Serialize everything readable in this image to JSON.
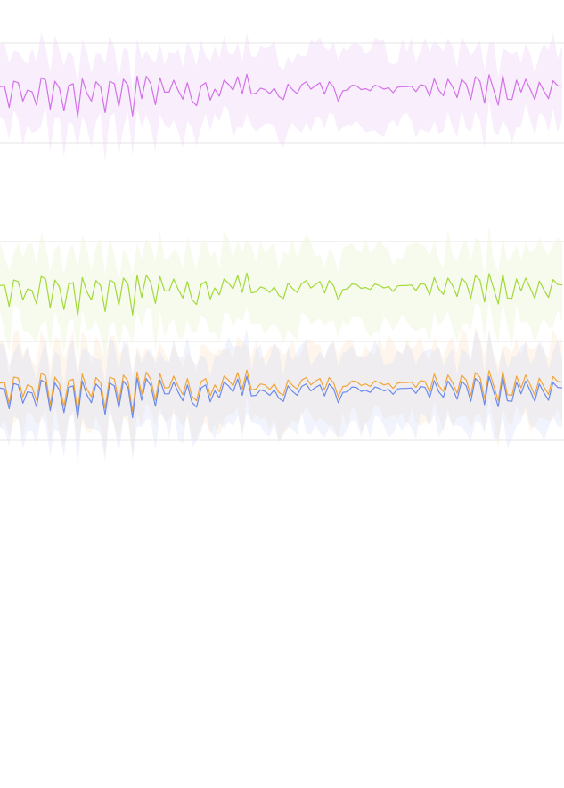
{
  "chart_data": [
    {
      "type": "line",
      "panel": "top",
      "x_points": 124,
      "ylim": [
        -1,
        1
      ],
      "grid": true,
      "band_color": "#eccff7",
      "series": [
        {
          "color": "#d371e8",
          "values": [
            0.12,
            0.13,
            -0.3,
            0.23,
            0.2,
            -0.17,
            0.05,
            0.02,
            -0.25,
            0.3,
            0.25,
            -0.33,
            0.23,
            0.09,
            -0.36,
            0.14,
            0.18,
            -0.49,
            0.28,
            -0.01,
            -0.17,
            0.22,
            0.12,
            -0.4,
            0.23,
            0.18,
            -0.28,
            0.27,
            0.15,
            -0.47,
            0.33,
            -0.12,
            0.33,
            0.18,
            -0.24,
            0.3,
            0.01,
            0.01,
            0.25,
            0.04,
            -0.13,
            0.2,
            -0.16,
            -0.26,
            0.14,
            0.2,
            -0.15,
            0.07,
            -0.07,
            0.25,
            0.17,
            0.05,
            0.32,
            -0.02,
            0.37,
            -0.03,
            -0.01,
            0.09,
            0.06,
            -0.02,
            0.09,
            -0.08,
            -0.14,
            0.17,
            0.06,
            -0.02,
            0.16,
            0.22,
            0.07,
            0.14,
            0.2,
            -0.03,
            0.22,
            0.11,
            -0.17,
            0.04,
            0.05,
            0.15,
            0.14,
            0.06,
            0.08,
            0.04,
            0.15,
            0.12,
            0.07,
            0.1,
            0.0,
            0.11,
            0.12,
            0.12,
            0.13,
            0.02,
            0.16,
            0.14,
            -0.07,
            0.28,
            0.05,
            -0.06,
            0.27,
            0.12,
            -0.1,
            0.27,
            0.17,
            -0.14,
            0.32,
            0.23,
            -0.21,
            0.36,
            0.06,
            -0.25,
            0.35,
            -0.13,
            -0.14,
            0.25,
            0.01,
            0.27,
            0.07,
            -0.14,
            0.21,
            0.03,
            -0.12,
            0.24,
            0.14,
            0.13
          ]
        }
      ]
    },
    {
      "type": "line",
      "panel": "middle",
      "x_points": 124,
      "ylim": [
        -1,
        1
      ],
      "grid": true,
      "band_color": "#e8f4cf",
      "series": [
        {
          "color": "#a2d93a",
          "values": [
            0.12,
            0.13,
            -0.3,
            0.23,
            0.2,
            -0.17,
            0.05,
            0.02,
            -0.25,
            0.3,
            0.25,
            -0.33,
            0.23,
            0.09,
            -0.36,
            0.14,
            0.18,
            -0.49,
            0.28,
            -0.01,
            -0.17,
            0.22,
            0.12,
            -0.4,
            0.23,
            0.18,
            -0.28,
            0.27,
            0.15,
            -0.47,
            0.33,
            -0.12,
            0.33,
            0.18,
            -0.24,
            0.3,
            0.01,
            0.01,
            0.25,
            0.04,
            -0.13,
            0.2,
            -0.16,
            -0.26,
            0.14,
            0.2,
            -0.15,
            0.07,
            -0.07,
            0.25,
            0.17,
            0.05,
            0.32,
            -0.02,
            0.37,
            -0.03,
            -0.01,
            0.09,
            0.06,
            -0.02,
            0.09,
            -0.08,
            -0.14,
            0.17,
            0.06,
            -0.02,
            0.16,
            0.22,
            0.07,
            0.14,
            0.2,
            -0.03,
            0.22,
            0.11,
            -0.17,
            0.04,
            0.05,
            0.15,
            0.14,
            0.06,
            0.08,
            0.04,
            0.15,
            0.12,
            0.07,
            0.1,
            0.0,
            0.11,
            0.12,
            0.12,
            0.13,
            0.02,
            0.16,
            0.14,
            -0.07,
            0.28,
            0.05,
            -0.06,
            0.27,
            0.12,
            -0.1,
            0.27,
            0.17,
            -0.14,
            0.32,
            0.23,
            -0.21,
            0.36,
            0.06,
            -0.25,
            0.35,
            -0.13,
            -0.14,
            0.25,
            0.01,
            0.27,
            0.07,
            -0.14,
            0.21,
            0.03,
            -0.12,
            0.24,
            0.14,
            0.13
          ]
        }
      ]
    },
    {
      "type": "line",
      "panel": "bottom",
      "x_points": 124,
      "ylim": [
        -1,
        1
      ],
      "grid": true,
      "band_colors": [
        "#fbe6c8",
        "#d8def9"
      ],
      "series": [
        {
          "color": "#f0a63a",
          "values": [
            0.16,
            0.17,
            -0.26,
            0.28,
            0.26,
            -0.12,
            0.12,
            0.08,
            -0.19,
            0.36,
            0.3,
            -0.28,
            0.28,
            0.14,
            -0.31,
            0.2,
            0.24,
            -0.42,
            0.34,
            0.04,
            -0.12,
            0.27,
            0.17,
            -0.35,
            0.28,
            0.24,
            -0.22,
            0.32,
            0.2,
            -0.42,
            0.38,
            -0.07,
            0.38,
            0.23,
            -0.19,
            0.35,
            0.06,
            0.07,
            0.3,
            0.09,
            -0.08,
            0.25,
            -0.11,
            -0.2,
            0.19,
            0.25,
            -0.1,
            0.12,
            -0.02,
            0.3,
            0.22,
            0.1,
            0.37,
            0.03,
            0.42,
            0.02,
            0.04,
            0.14,
            0.12,
            0.03,
            0.14,
            -0.03,
            -0.09,
            0.22,
            0.11,
            0.04,
            0.22,
            0.27,
            0.12,
            0.2,
            0.25,
            0.02,
            0.27,
            0.16,
            -0.12,
            0.09,
            0.1,
            0.2,
            0.19,
            0.11,
            0.14,
            0.09,
            0.2,
            0.17,
            0.12,
            0.15,
            0.05,
            0.16,
            0.17,
            0.17,
            0.18,
            0.07,
            0.21,
            0.19,
            -0.02,
            0.34,
            0.1,
            -0.01,
            0.32,
            0.17,
            -0.05,
            0.32,
            0.22,
            -0.09,
            0.37,
            0.28,
            -0.16,
            0.41,
            0.11,
            -0.2,
            0.4,
            -0.08,
            -0.09,
            0.3,
            0.06,
            0.32,
            0.12,
            -0.09,
            0.26,
            0.08,
            -0.07,
            0.29,
            0.19,
            0.18
          ]
        },
        {
          "color": "#6b8bec",
          "values": [
            0.06,
            0.04,
            -0.36,
            0.15,
            0.12,
            -0.25,
            -0.02,
            -0.04,
            -0.32,
            0.22,
            0.16,
            -0.4,
            0.16,
            0.02,
            -0.44,
            0.07,
            0.1,
            -0.56,
            0.2,
            -0.08,
            -0.24,
            0.14,
            0.04,
            -0.48,
            0.16,
            0.1,
            -0.35,
            0.2,
            0.08,
            -0.54,
            0.26,
            -0.19,
            0.25,
            0.1,
            -0.31,
            0.22,
            -0.06,
            -0.06,
            0.18,
            -0.03,
            -0.2,
            0.12,
            -0.23,
            -0.33,
            0.06,
            0.12,
            -0.22,
            0.0,
            -0.14,
            0.18,
            0.1,
            -0.02,
            0.24,
            -0.09,
            0.3,
            -0.1,
            -0.09,
            0.02,
            -0.01,
            -0.09,
            0.02,
            -0.15,
            -0.21,
            0.1,
            -0.01,
            -0.09,
            0.09,
            0.14,
            0.0,
            0.07,
            0.12,
            -0.1,
            0.14,
            0.04,
            -0.24,
            -0.03,
            -0.02,
            0.08,
            0.07,
            -0.01,
            0.01,
            -0.03,
            0.08,
            0.05,
            0.0,
            0.03,
            -0.07,
            0.04,
            0.05,
            0.05,
            0.06,
            -0.05,
            0.09,
            0.07,
            -0.14,
            0.21,
            -0.02,
            -0.13,
            0.2,
            0.05,
            -0.17,
            0.2,
            0.1,
            -0.21,
            0.25,
            0.16,
            -0.28,
            0.29,
            -0.01,
            -0.32,
            0.28,
            -0.2,
            -0.21,
            0.18,
            -0.06,
            0.2,
            0.0,
            -0.21,
            0.14,
            -0.04,
            -0.19,
            0.17,
            0.07,
            0.06
          ]
        }
      ]
    }
  ]
}
